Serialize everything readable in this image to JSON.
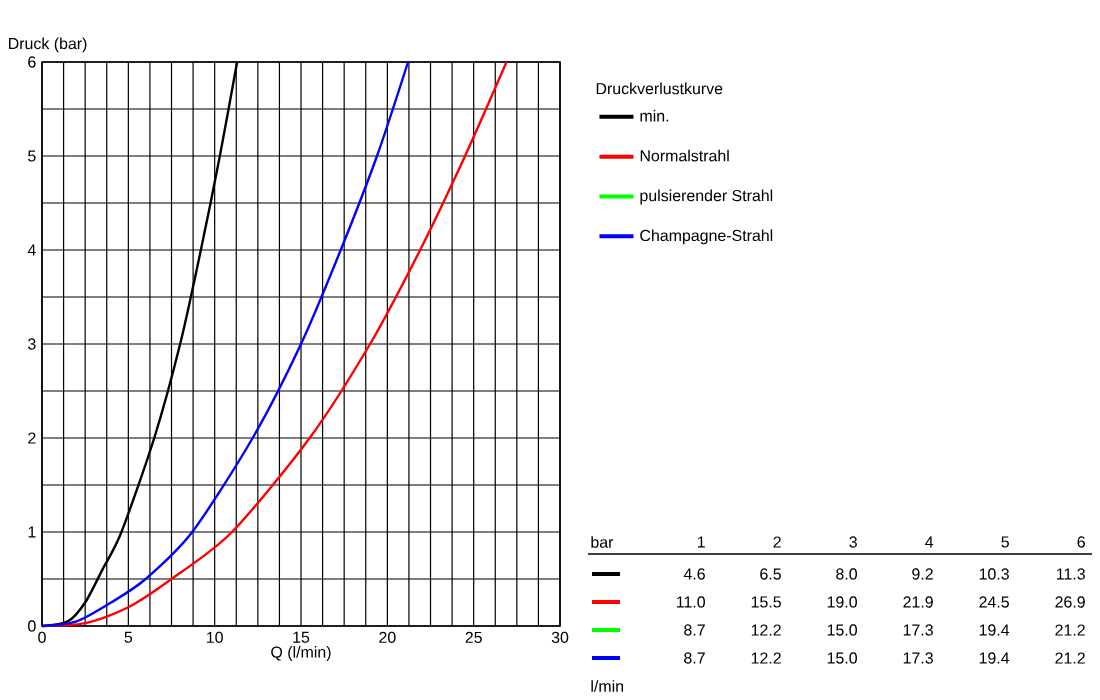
{
  "chart_data": {
    "type": "line",
    "xlabel": "Q (l/min)",
    "ylabel": "Druck (bar)",
    "legend_title": "Druckverlustkurve",
    "legend": "right",
    "grid": true,
    "marker": "none",
    "line_style": "solid",
    "xlim": [
      0,
      30
    ],
    "ylim": [
      0,
      6
    ],
    "xticks": [
      0,
      {
        "value": 1.25,
        "label": null
      },
      {
        "value": 2.5,
        "label": null
      },
      {
        "value": 3.75,
        "label": null
      },
      5,
      {
        "value": 6.25,
        "label": null
      },
      {
        "value": 7.5,
        "label": null
      },
      {
        "value": 8.75,
        "label": null
      },
      10,
      {
        "value": 11.25,
        "label": null
      },
      {
        "value": 12.5,
        "label": null
      },
      {
        "value": 13.75,
        "label": null
      },
      15,
      {
        "value": 16.25,
        "label": null
      },
      {
        "value": 17.5,
        "label": null
      },
      {
        "value": 18.75,
        "label": null
      },
      20,
      {
        "value": 21.25,
        "label": null
      },
      {
        "value": 22.5,
        "label": null
      },
      {
        "value": 23.75,
        "label": null
      },
      25,
      {
        "value": 26.25,
        "label": null
      },
      {
        "value": 27.5,
        "label": null
      },
      {
        "value": 28.75,
        "label": null
      },
      30
    ],
    "yticks": [
      0,
      {
        "value": 0.5,
        "label": null
      },
      1,
      {
        "value": 1.5,
        "label": null
      },
      2,
      {
        "value": 2.5,
        "label": null
      },
      3,
      {
        "value": 3.5,
        "label": null
      },
      4,
      {
        "value": 4.5,
        "label": null
      },
      5,
      {
        "value": 5.5,
        "label": null
      },
      6
    ],
    "series": [
      {
        "name": "min.",
        "color": "#000000",
        "x": [
          0,
          1.5,
          2.5,
          3.5,
          4.6,
          6.5,
          8.0,
          9.2,
          10.3,
          11.3
        ],
        "values": [
          0,
          0.05,
          0.25,
          0.6,
          1,
          2,
          3,
          4,
          5,
          6
        ]
      },
      {
        "name": "Normalstrahl",
        "color": "#ff0000",
        "x": [
          0,
          2.5,
          5,
          7.5,
          11.0,
          15.5,
          19.0,
          21.9,
          24.5,
          26.9
        ],
        "values": [
          0,
          0.03,
          0.2,
          0.5,
          1,
          2,
          3,
          4,
          5,
          6
        ]
      },
      {
        "name": "pulsierender Strahl",
        "color": "#00ff00"
      },
      {
        "name": "Champagne-Strahl",
        "color": "#0000ff",
        "x": [
          0,
          2,
          4,
          6,
          8.7,
          12.2,
          15.0,
          17.3,
          19.4,
          21.2
        ],
        "values": [
          0,
          0.05,
          0.25,
          0.5,
          1,
          2,
          3,
          4,
          5,
          6
        ]
      }
    ],
    "annotations": [
      "bar",
      "1",
      "2",
      "3",
      "4",
      "5",
      "6",
      "4.6",
      "6.5",
      "8.0",
      "9.2",
      "10.3",
      "11.3",
      "11.0",
      "15.5",
      "19.0",
      "21.9",
      "24.5",
      "26.9",
      "8.7",
      "12.2",
      "15.0",
      "17.3",
      "19.4",
      "21.2",
      "8.7",
      "12.2",
      "15.0",
      "17.3",
      "19.4",
      "21.2",
      "l/min"
    ]
  }
}
